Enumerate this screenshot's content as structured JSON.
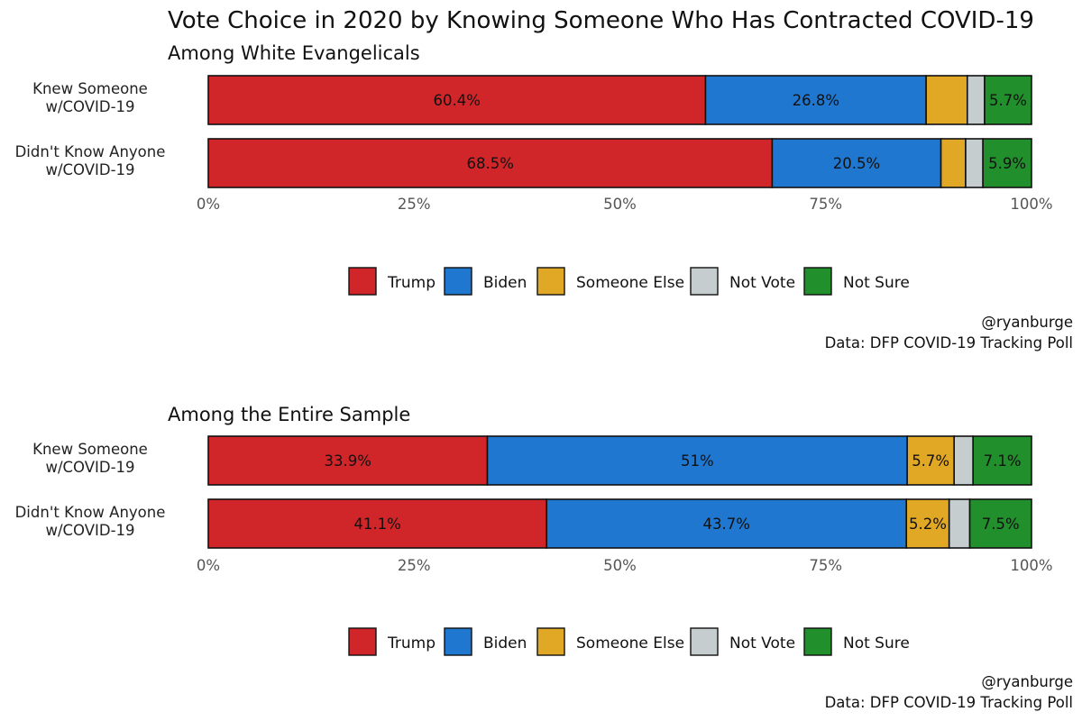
{
  "title": "Vote Choice in 2020 by Knowing Someone Who Has Contracted COVID-19",
  "legend": {
    "items": [
      {
        "key": "trump",
        "label": "Trump",
        "color": "#d0262a"
      },
      {
        "key": "biden",
        "label": "Biden",
        "color": "#1f77d0"
      },
      {
        "key": "else",
        "label": "Someone Else",
        "color": "#e0a825"
      },
      {
        "key": "notvote",
        "label": "Not Vote",
        "color": "#c6cdce"
      },
      {
        "key": "notsure",
        "label": "Not Sure",
        "color": "#218f2b"
      }
    ]
  },
  "caption": {
    "handle": "@ryanburge",
    "source": "Data: DFP COVID-19 Tracking Poll"
  },
  "chart_data": [
    {
      "type": "bar",
      "orientation": "horizontal",
      "stacked": true,
      "subtitle": "Among White Evangelicals",
      "categories": [
        "Knew Someone\nw/COVID-19",
        "Didn't Know Anyone\nw/COVID-19"
      ],
      "xlim": [
        0,
        100
      ],
      "xticks": [
        "0%",
        "25%",
        "50%",
        "75%",
        "100%"
      ],
      "legend_position": "bottom",
      "series": [
        {
          "name": "Trump",
          "values": [
            60.4,
            68.5
          ],
          "labels": [
            "60.4%",
            "68.5%"
          ]
        },
        {
          "name": "Biden",
          "values": [
            26.8,
            20.5
          ],
          "labels": [
            "26.8%",
            "20.5%"
          ]
        },
        {
          "name": "Someone Else",
          "values": [
            5.0,
            3.0
          ],
          "labels": [
            "",
            ""
          ]
        },
        {
          "name": "Not Vote",
          "values": [
            2.1,
            2.1
          ],
          "labels": [
            "",
            ""
          ]
        },
        {
          "name": "Not Sure",
          "values": [
            5.7,
            5.9
          ],
          "labels": [
            "5.7%",
            "5.9%"
          ]
        }
      ]
    },
    {
      "type": "bar",
      "orientation": "horizontal",
      "stacked": true,
      "subtitle": "Among the Entire Sample",
      "categories": [
        "Knew Someone\nw/COVID-19",
        "Didn't Know Anyone\nw/COVID-19"
      ],
      "xlim": [
        0,
        100
      ],
      "xticks": [
        "0%",
        "25%",
        "50%",
        "75%",
        "100%"
      ],
      "legend_position": "bottom",
      "series": [
        {
          "name": "Trump",
          "values": [
            33.9,
            41.1
          ],
          "labels": [
            "33.9%",
            "41.1%"
          ]
        },
        {
          "name": "Biden",
          "values": [
            51.0,
            43.7
          ],
          "labels": [
            "51%",
            "43.7%"
          ]
        },
        {
          "name": "Someone Else",
          "values": [
            5.7,
            5.2
          ],
          "labels": [
            "5.7%",
            "5.2%"
          ]
        },
        {
          "name": "Not Vote",
          "values": [
            2.3,
            2.5
          ],
          "labels": [
            "",
            ""
          ]
        },
        {
          "name": "Not Sure",
          "values": [
            7.1,
            7.5
          ],
          "labels": [
            "7.1%",
            "7.5%"
          ]
        }
      ]
    }
  ]
}
